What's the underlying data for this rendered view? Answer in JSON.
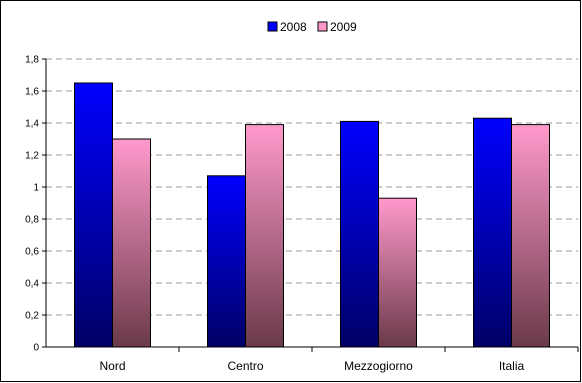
{
  "chart_data": {
    "type": "bar",
    "categories": [
      "Nord",
      "Centro",
      "Mezzogiorno",
      "Italia"
    ],
    "series": [
      {
        "name": "2008",
        "values": [
          1.65,
          1.07,
          1.41,
          1.43
        ],
        "color_top": "#0000ff",
        "color_bottom": "#000066"
      },
      {
        "name": "2009",
        "values": [
          1.3,
          1.39,
          0.93,
          1.39
        ],
        "color_top": "#ff99cc",
        "color_bottom": "#6b3a4a"
      }
    ],
    "title": "",
    "xlabel": "",
    "ylabel": "",
    "ylim": [
      0,
      1.8
    ],
    "yticks": [
      0,
      0.2,
      0.4,
      0.6,
      0.8,
      1,
      1.2,
      1.4,
      1.6,
      1.8
    ],
    "ytick_labels": [
      "0",
      "0,2",
      "0,4",
      "0,6",
      "0,8",
      "1",
      "1,2",
      "1,4",
      "1,6",
      "1,8"
    ],
    "grid": true,
    "legend_position": "top-center"
  }
}
